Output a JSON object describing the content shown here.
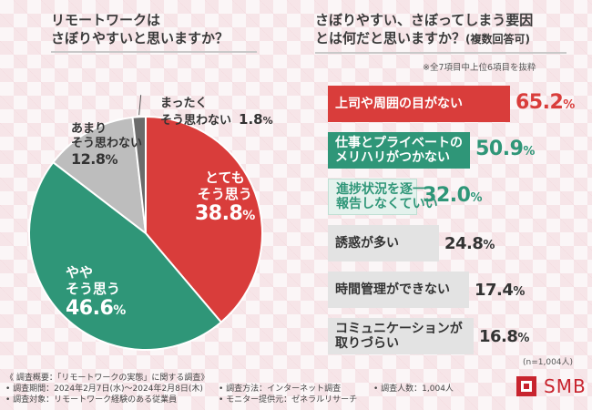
{
  "left_title": {
    "line1": "リモートワークは",
    "line2": "さぼりやすいと思いますか？"
  },
  "right_title": {
    "line1": "さぼりやすい、さぼってしまう要因",
    "line2": "とは何だと思いますか？",
    "line2_suffix": "(複数回答可)"
  },
  "right_note": "※全7項目中上位6項目を抜粋",
  "sample_note": "(n=1,004人)",
  "chart_data": [
    {
      "type": "pie",
      "slices": [
        {
          "label_lines": [
            "とても",
            "そう思う"
          ],
          "value": 38.8,
          "value_text": "38.8",
          "color": "#d93d3b"
        },
        {
          "label_lines": [
            "やや",
            "そう思う"
          ],
          "value": 46.6,
          "value_text": "46.6",
          "color": "#2f9678"
        },
        {
          "label_lines": [
            "あまり",
            "そう思わない"
          ],
          "value": 12.8,
          "value_text": "12.8",
          "color": "#bdbdbd"
        },
        {
          "label_lines": [
            "まったく",
            "そう思わない"
          ],
          "value": 1.8,
          "value_text": "1.8",
          "color": "#6b6b6b"
        }
      ],
      "unit": "%"
    },
    {
      "type": "bar",
      "categories": [
        [
          "上司や周囲の目がない"
        ],
        [
          "仕事とプライベートの",
          "メリハリがつかない"
        ],
        [
          "進捗状況を逐一",
          "報告しなくていい"
        ],
        [
          "誘惑が多い"
        ],
        [
          "時間管理ができない"
        ],
        [
          "コミュニケーションが",
          "取りづらい"
        ]
      ],
      "values": [
        65.2,
        50.9,
        32.0,
        24.8,
        17.4,
        16.8
      ],
      "value_texts": [
        "65.2",
        "50.9",
        "32.0",
        "24.8",
        "17.4",
        "16.8"
      ],
      "unit": "%",
      "colors": [
        "#d93d3b",
        "#2f9678",
        "#e4f2ed",
        "#e3e3e3",
        "#e3e3e3",
        "#e3e3e3"
      ],
      "label_colors": [
        "#ffffff",
        "#ffffff",
        "#2f9678",
        "#333333",
        "#333333",
        "#333333"
      ],
      "value_colors": [
        "#d93d3b",
        "#2f9678",
        "#2f9678",
        "#333333",
        "#333333",
        "#333333"
      ]
    }
  ],
  "footer": {
    "summary": "《 調査概要：「リモートワークの実態」に関する調査》",
    "period": "• 調査期間：2024年2月7日(水)～2024年2月8日(木)",
    "target": "• 調査対象：リモートワーク経験のある従業員",
    "method": "• 調査方法：インターネット調査",
    "provider": "• モニター提供元：ゼネラルリサーチ",
    "count": "• 調査人数：1,004人"
  },
  "logo_text": "SMB",
  "colors": {
    "red": "#d93d3b",
    "green": "#2f9678",
    "gray": "#bdbdbd",
    "dark_gray": "#6b6b6b"
  }
}
